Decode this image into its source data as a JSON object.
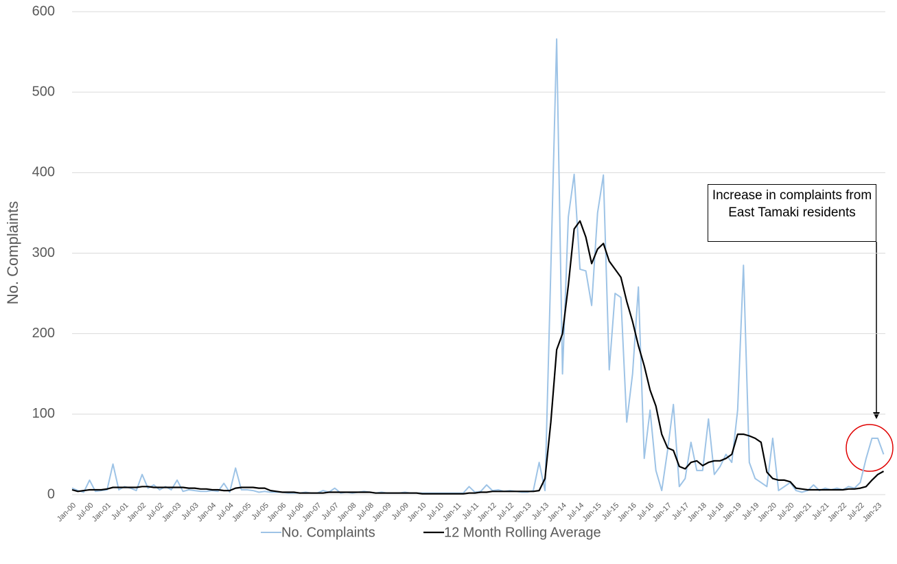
{
  "chart_data": {
    "type": "line",
    "y_label": "No. Complaints",
    "annotation": "Increase in complaints from East Tamaki residents",
    "categories": [
      "Jan-00",
      null,
      null,
      "Jul-00",
      null,
      null,
      "Jan-01",
      null,
      null,
      "Jul-01",
      null,
      null,
      "Jan-02",
      null,
      null,
      "Jul-02",
      null,
      null,
      "Jan-03",
      null,
      null,
      "Jul-03",
      null,
      null,
      "Jan-04",
      null,
      null,
      "Jul-04",
      null,
      null,
      "Jan-05",
      null,
      null,
      "Jul-05",
      null,
      null,
      "Jan-06",
      null,
      null,
      "Jul-06",
      null,
      null,
      "Jan-07",
      null,
      null,
      "Jul-07",
      null,
      null,
      "Jan-08",
      null,
      null,
      "Jul-08",
      null,
      null,
      "Jan-09",
      null,
      null,
      "Jul-09",
      null,
      null,
      "Jan-10",
      null,
      null,
      "Jul-10",
      null,
      null,
      "Jan-11",
      null,
      null,
      "Jul-11",
      null,
      null,
      "Jan-12",
      null,
      null,
      "Jul-12",
      null,
      null,
      "Jan-13",
      null,
      null,
      "Jul-13",
      null,
      null,
      "Jan-14",
      null,
      null,
      "Jul-14",
      null,
      null,
      "Jan-15",
      null,
      null,
      "Jul-15",
      null,
      null,
      "Jan-16",
      null,
      null,
      "Jul-16",
      null,
      null,
      "Jan-17",
      null,
      null,
      "Jul-17",
      null,
      null,
      "Jan-18",
      null,
      null,
      "Jul-18",
      null,
      null,
      "Jan-19",
      null,
      null,
      "Jul-19",
      null,
      null,
      "Jan-20",
      null,
      null,
      "Jul-20",
      null,
      null,
      "Jan-21",
      null,
      null,
      "Jul-21",
      null,
      null,
      "Jan-22",
      null,
      null,
      "Jul-22",
      null,
      null,
      "Jan-23",
      null
    ],
    "series": [
      {
        "name": "No. Complaints",
        "color": "#9dc3e6",
        "width": 2,
        "values": [
          8,
          5,
          3,
          18,
          4,
          5,
          6,
          38,
          6,
          10,
          8,
          5,
          25,
          8,
          12,
          6,
          10,
          6,
          18,
          4,
          6,
          5,
          4,
          4,
          5,
          4,
          14,
          3,
          33,
          6,
          6,
          5,
          3,
          4,
          3,
          3,
          3,
          2,
          2,
          2,
          3,
          2,
          2,
          5,
          3,
          8,
          2,
          3,
          2,
          3,
          4,
          3,
          2,
          3,
          2,
          2,
          2,
          3,
          2,
          2,
          2,
          2,
          2,
          2,
          2,
          2,
          2,
          2,
          10,
          3,
          4,
          12,
          5,
          6,
          4,
          5,
          4,
          3,
          3,
          5,
          40,
          5,
          280,
          566,
          150,
          345,
          398,
          280,
          278,
          235,
          350,
          397,
          155,
          250,
          245,
          90,
          150,
          258,
          45,
          105,
          30,
          5,
          55,
          112,
          10,
          20,
          65,
          30,
          30,
          94,
          25,
          35,
          50,
          40,
          105,
          285,
          40,
          20,
          15,
          10,
          70,
          5,
          10,
          15,
          5,
          3,
          5,
          12,
          5,
          8,
          6,
          8,
          6,
          10,
          8,
          15,
          45,
          70,
          70,
          50
        ]
      },
      {
        "name": "12 Month Rolling Average",
        "color": "#000000",
        "width": 2.2,
        "values": [
          6,
          4,
          5,
          6,
          6,
          6,
          7,
          9,
          9,
          9,
          9,
          9,
          10,
          10,
          9,
          9,
          9,
          9,
          9,
          9,
          8,
          8,
          7,
          7,
          6,
          6,
          5,
          5,
          8,
          9,
          9,
          9,
          8,
          8,
          5,
          4,
          3,
          3,
          3,
          2,
          2,
          2,
          2,
          2,
          3,
          3,
          3,
          3,
          3,
          3,
          3,
          3,
          2,
          2,
          2,
          2,
          2,
          2,
          2,
          2,
          1,
          1,
          1,
          1,
          1,
          1,
          1,
          1,
          2,
          2,
          3,
          3,
          4,
          4,
          4,
          4,
          4,
          4,
          4,
          4,
          5,
          20,
          90,
          180,
          200,
          260,
          330,
          340,
          320,
          287,
          305,
          312,
          290,
          280,
          270,
          240,
          215,
          185,
          160,
          130,
          110,
          75,
          58,
          55,
          35,
          32,
          40,
          42,
          36,
          40,
          42,
          42,
          45,
          50,
          75,
          75,
          73,
          70,
          65,
          28,
          20,
          18,
          18,
          16,
          8,
          7,
          6,
          6,
          6,
          6,
          6,
          6,
          6,
          7,
          7,
          8,
          10,
          18,
          25,
          29
        ]
      }
    ],
    "ylim": [
      0,
      600
    ],
    "yticks": [
      0,
      100,
      200,
      300,
      400,
      500,
      600
    ],
    "grid": true
  }
}
